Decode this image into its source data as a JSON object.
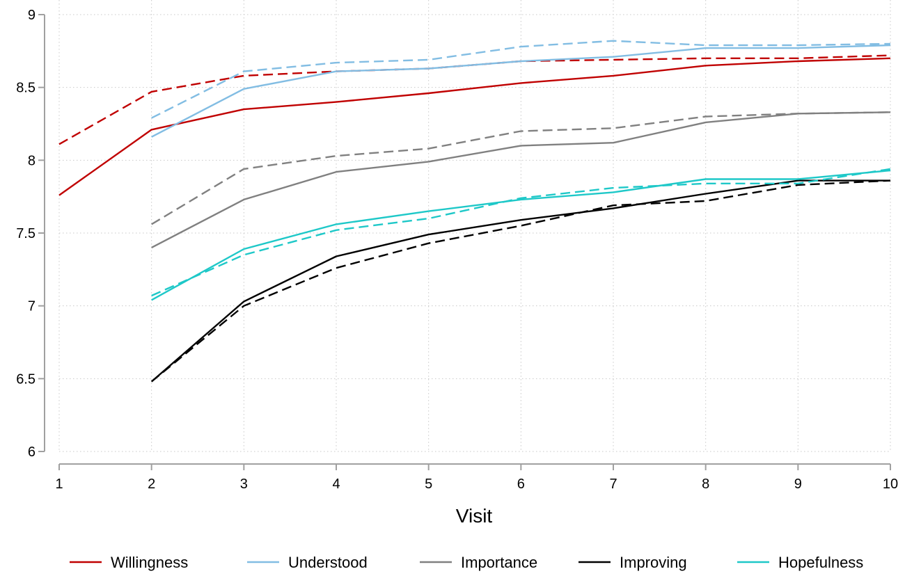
{
  "chart_data": {
    "type": "line",
    "title": "",
    "xlabel": "Visit",
    "ylabel": "",
    "xlim": [
      1,
      10
    ],
    "ylim": [
      6,
      9
    ],
    "x_ticks": [
      "1",
      "2",
      "3",
      "4",
      "5",
      "6",
      "7",
      "8",
      "9",
      "10"
    ],
    "y_ticks": [
      "6",
      "6.5",
      "7",
      "7.5",
      "8",
      "8.5",
      "9"
    ],
    "grid": true,
    "legend_position": "bottom",
    "series": [
      {
        "name": "Willingness",
        "color": "#c00000",
        "style": "solid",
        "x": [
          1,
          2,
          3,
          4,
          5,
          6,
          7,
          8,
          9,
          10
        ],
        "values": [
          7.76,
          8.21,
          8.35,
          8.4,
          8.46,
          8.53,
          8.58,
          8.65,
          8.68,
          8.7
        ]
      },
      {
        "name": "",
        "color": "#c00000",
        "style": "dashed",
        "x": [
          1,
          2,
          3,
          4,
          5,
          6,
          7,
          8,
          9,
          10
        ],
        "values": [
          8.11,
          8.47,
          8.58,
          8.61,
          8.63,
          8.68,
          8.69,
          8.7,
          8.7,
          8.72
        ]
      },
      {
        "name": "Understood",
        "color": "#82bde3",
        "style": "solid",
        "x": [
          2,
          3,
          4,
          5,
          6,
          7,
          8,
          9,
          10
        ],
        "values": [
          8.16,
          8.49,
          8.61,
          8.63,
          8.68,
          8.71,
          8.77,
          8.77,
          8.79
        ]
      },
      {
        "name": "",
        "color": "#82bde3",
        "style": "dashed",
        "x": [
          2,
          3,
          4,
          5,
          6,
          7,
          8,
          9,
          10
        ],
        "values": [
          8.29,
          8.61,
          8.67,
          8.69,
          8.78,
          8.82,
          8.79,
          8.79,
          8.8
        ]
      },
      {
        "name": "Importance",
        "color": "#808080",
        "style": "solid",
        "x": [
          2,
          3,
          4,
          5,
          6,
          7,
          8,
          9,
          10
        ],
        "values": [
          7.4,
          7.73,
          7.92,
          7.99,
          8.1,
          8.12,
          8.26,
          8.32,
          8.33
        ]
      },
      {
        "name": "",
        "color": "#808080",
        "style": "dashed",
        "x": [
          2,
          3,
          4,
          5,
          6,
          7,
          8,
          9,
          10
        ],
        "values": [
          7.56,
          7.94,
          8.03,
          8.08,
          8.2,
          8.22,
          8.3,
          8.32,
          8.33
        ]
      },
      {
        "name": "Improving",
        "color": "#000000",
        "style": "solid",
        "x": [
          2,
          3,
          4,
          5,
          6,
          7,
          8,
          9,
          10
        ],
        "values": [
          6.48,
          7.03,
          7.34,
          7.49,
          7.59,
          7.67,
          7.77,
          7.86,
          7.86
        ]
      },
      {
        "name": "",
        "color": "#000000",
        "style": "dashed",
        "x": [
          2,
          3,
          4,
          5,
          6,
          7,
          8,
          9,
          10
        ],
        "values": [
          6.48,
          7.0,
          7.26,
          7.43,
          7.55,
          7.69,
          7.72,
          7.83,
          7.86
        ]
      },
      {
        "name": "Hopefulness",
        "color": "#1ec8c8",
        "style": "solid",
        "x": [
          2,
          3,
          4,
          5,
          6,
          7,
          8,
          9,
          10
        ],
        "values": [
          7.04,
          7.39,
          7.56,
          7.65,
          7.73,
          7.78,
          7.87,
          7.87,
          7.93
        ]
      },
      {
        "name": "",
        "color": "#1ec8c8",
        "style": "dashed",
        "x": [
          2,
          3,
          4,
          5,
          6,
          7,
          8,
          9,
          10
        ],
        "values": [
          7.07,
          7.35,
          7.52,
          7.6,
          7.74,
          7.81,
          7.84,
          7.84,
          7.94
        ]
      }
    ]
  }
}
